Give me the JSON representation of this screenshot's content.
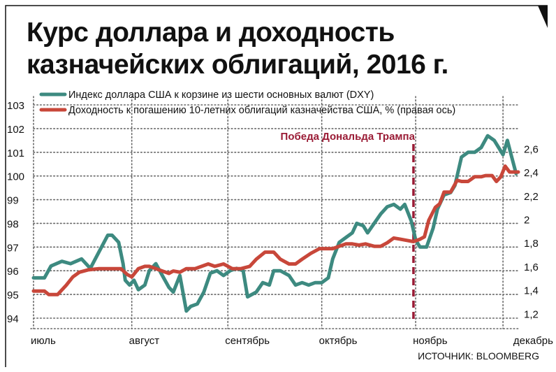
{
  "title_lines": [
    "Курс доллара и доходность",
    "казначейских облигаций, 2016 г."
  ],
  "source": "ИСТОЧНИК: BLOOMBERG",
  "annotation": {
    "label": "Победа Дональда Трампа",
    "x": 174
  },
  "colors": {
    "dxy": "#3d8a80",
    "yield": "#c8473a",
    "event": "#9a1b35",
    "grid": "#666666",
    "text": "#111111"
  },
  "chart_data": {
    "type": "line",
    "title": "Курс доллара и доходность казначейских облигаций, 2016 г.",
    "xlabel": "",
    "ylabel": "",
    "y_left_range": [
      94,
      103
    ],
    "y_left_ticks": [
      "94",
      "95",
      "96",
      "97",
      "98",
      "99",
      "100",
      "101",
      "102",
      "103"
    ],
    "y_right_range": [
      1.16,
      2.97
    ],
    "y_right_ticks": [
      "1,2",
      "1,4",
      "1,6",
      "1,8",
      "2",
      "2,2",
      "2,4",
      "2,6"
    ],
    "x_range": [
      0,
      222
    ],
    "x_tick_labels": [
      {
        "label": "июль",
        "x": 0
      },
      {
        "label": "август",
        "x": 45
      },
      {
        "label": "сентябрь",
        "x": 89
      },
      {
        "label": "октябрь",
        "x": 132
      },
      {
        "label": "ноябрь",
        "x": 175
      },
      {
        "label": "декабрь",
        "x": 221
      }
    ],
    "x_grid": [
      0,
      45,
      89,
      132,
      175,
      215
    ],
    "legend_position": "top-left",
    "grid": true,
    "series": [
      {
        "name": "Индекс доллара США к корзине из шести основных валют (DXY)",
        "axis": "left",
        "x": [
          0,
          5,
          8,
          13,
          17,
          22,
          26,
          30,
          34,
          36,
          39,
          41,
          42,
          44,
          46,
          48,
          51,
          53,
          56,
          59,
          62,
          64,
          67,
          70,
          72,
          75,
          78,
          81,
          84,
          87,
          90,
          93,
          96,
          98,
          102,
          105,
          108,
          110,
          113,
          117,
          120,
          123,
          126,
          129,
          132,
          135,
          137,
          140,
          143,
          146,
          148,
          151,
          153,
          156,
          159,
          162,
          165,
          168,
          170,
          173,
          175,
          177,
          180,
          183,
          185,
          188,
          191,
          193,
          196,
          199,
          202,
          205,
          208,
          211,
          213,
          215,
          217,
          219,
          221
        ],
        "values": [
          95.7,
          95.7,
          96.2,
          96.4,
          96.3,
          96.5,
          96.1,
          96.8,
          97.5,
          97.5,
          97.2,
          96.3,
          95.6,
          95.4,
          95.6,
          95.2,
          95.4,
          96.0,
          96.3,
          95.8,
          95.3,
          95.1,
          95.8,
          94.3,
          94.5,
          94.6,
          95.1,
          95.9,
          96.0,
          95.8,
          96.0,
          96.1,
          96.0,
          94.9,
          95.1,
          95.5,
          95.4,
          96.0,
          96.0,
          95.8,
          95.4,
          95.5,
          95.4,
          95.5,
          95.5,
          95.7,
          96.5,
          97.2,
          97.4,
          97.6,
          98.0,
          97.9,
          97.6,
          98.0,
          98.4,
          98.7,
          98.8,
          98.6,
          98.8,
          98.1,
          97.3,
          97.0,
          97.0,
          97.8,
          98.6,
          99.2,
          99.3,
          99.6,
          100.8,
          101.0,
          101.0,
          101.2,
          101.7,
          101.5,
          101.2,
          100.9,
          101.5,
          100.8,
          100.1
        ]
      },
      {
        "name": "Доходность к погашению 10-летних облигаций казначейства США, % (правая ось)",
        "axis": "right",
        "x": [
          0,
          5,
          7,
          11,
          15,
          18,
          21,
          25,
          30,
          34,
          40,
          43,
          45,
          48,
          51,
          53,
          56,
          59,
          62,
          64,
          67,
          70,
          74,
          77,
          80,
          83,
          87,
          91,
          95,
          99,
          102,
          106,
          110,
          113,
          117,
          120,
          123,
          127,
          131,
          134,
          137,
          140,
          143,
          146,
          149,
          152,
          156,
          159,
          162,
          165,
          168,
          171,
          174,
          177,
          179,
          181,
          184,
          186,
          188,
          191,
          194,
          196,
          199,
          202,
          205,
          207,
          210,
          212,
          214,
          216,
          218,
          220,
          222
        ],
        "values": [
          1.39,
          1.39,
          1.36,
          1.36,
          1.44,
          1.51,
          1.55,
          1.57,
          1.58,
          1.58,
          1.58,
          1.53,
          1.51,
          1.58,
          1.6,
          1.6,
          1.58,
          1.56,
          1.54,
          1.56,
          1.55,
          1.58,
          1.58,
          1.6,
          1.62,
          1.6,
          1.62,
          1.58,
          1.58,
          1.6,
          1.66,
          1.72,
          1.72,
          1.66,
          1.62,
          1.62,
          1.66,
          1.71,
          1.75,
          1.75,
          1.75,
          1.77,
          1.79,
          1.79,
          1.78,
          1.79,
          1.77,
          1.77,
          1.8,
          1.84,
          1.83,
          1.82,
          1.81,
          1.83,
          1.85,
          1.99,
          2.1,
          2.13,
          2.23,
          2.23,
          2.33,
          2.32,
          2.32,
          2.36,
          2.36,
          2.37,
          2.37,
          2.32,
          2.36,
          2.45,
          2.4,
          2.4,
          2.4
        ]
      }
    ]
  }
}
